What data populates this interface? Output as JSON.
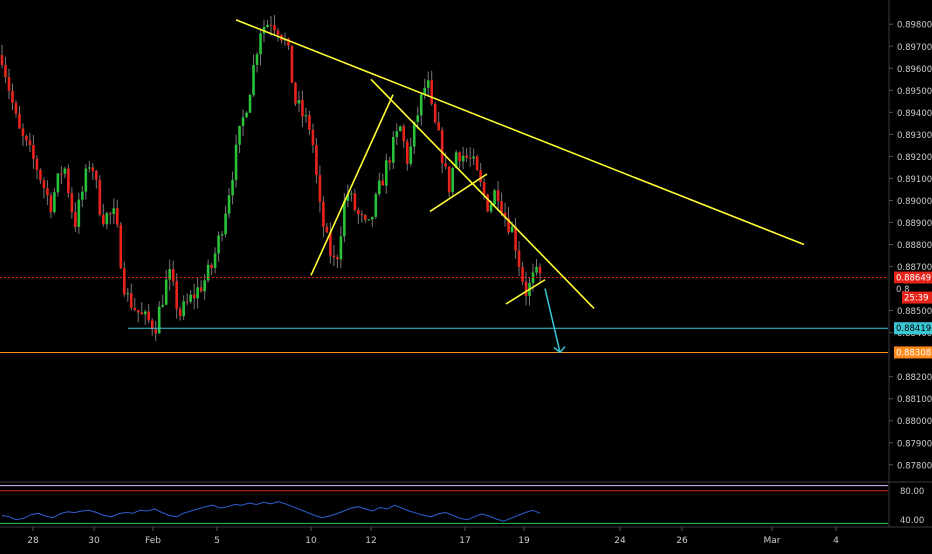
{
  "chart_data": [
    {
      "type": "candlestick",
      "instrument_hint": "forex pair (unlabeled)",
      "x_ticks": [
        "28",
        "30",
        "Feb",
        "5",
        "10",
        "12",
        "17",
        "19",
        "24",
        "26",
        "Mar",
        "4"
      ],
      "y_ticks": [
        "0.89800",
        "0.89700",
        "0.89600",
        "0.89500",
        "0.89400",
        "0.89300",
        "0.89200",
        "0.89100",
        "0.89000",
        "0.88900",
        "0.88800",
        "0.88700",
        "0.88500",
        "0.88400",
        "0.88200",
        "0.88100",
        "0.88000",
        "0.87900",
        "0.87800"
      ],
      "ylim": [
        0.8774,
        0.8991
      ],
      "price_path": [
        [
          0,
          0.8966
        ],
        [
          0.03,
          0.8932
        ],
        [
          0.065,
          0.8915
        ],
        [
          0.09,
          0.8898
        ],
        [
          0.115,
          0.8917
        ],
        [
          0.135,
          0.8889
        ],
        [
          0.165,
          0.892
        ],
        [
          0.185,
          0.8893
        ],
        [
          0.21,
          0.8893
        ],
        [
          0.23,
          0.8857
        ],
        [
          0.26,
          0.8847
        ],
        [
          0.285,
          0.8843
        ],
        [
          0.31,
          0.8867
        ],
        [
          0.33,
          0.8848
        ],
        [
          0.35,
          0.8855
        ],
        [
          0.375,
          0.8863
        ],
        [
          0.39,
          0.887
        ],
        [
          0.405,
          0.8884
        ],
        [
          0.42,
          0.8902
        ],
        [
          0.44,
          0.8928
        ],
        [
          0.46,
          0.895
        ],
        [
          0.48,
          0.8978
        ],
        [
          0.5,
          0.8982
        ],
        [
          0.515,
          0.8978
        ],
        [
          0.53,
          0.897
        ],
        [
          0.545,
          0.8945
        ],
        [
          0.56,
          0.8938
        ],
        [
          0.575,
          0.8932
        ],
        [
          0.59,
          0.8897
        ],
        [
          0.605,
          0.888
        ],
        [
          0.62,
          0.887
        ],
        [
          0.64,
          0.8905
        ],
        [
          0.66,
          0.8894
        ],
        [
          0.68,
          0.8886
        ],
        [
          0.7,
          0.8904
        ],
        [
          0.72,
          0.892
        ],
        [
          0.74,
          0.8933
        ],
        [
          0.755,
          0.8917
        ],
        [
          0.77,
          0.8937
        ],
        [
          0.79,
          0.8955
        ],
        [
          0.8,
          0.8938
        ],
        [
          0.815,
          0.8925
        ],
        [
          0.83,
          0.8905
        ],
        [
          0.845,
          0.8923
        ],
        [
          0.86,
          0.892
        ],
        [
          0.875,
          0.8917
        ],
        [
          0.89,
          0.8906
        ],
        [
          0.905,
          0.8897
        ],
        [
          0.92,
          0.8906
        ],
        [
          0.935,
          0.8893
        ],
        [
          0.95,
          0.8886
        ],
        [
          0.965,
          0.8867
        ],
        [
          0.975,
          0.8858
        ],
        [
          0.99,
          0.8866
        ],
        [
          1.0,
          0.8865
        ]
      ],
      "price_path_x_note": "x runs 0..1 from the first to the last visible candle",
      "candle_count": 155,
      "seed": 7,
      "colors": {
        "bull": "#27c23a",
        "bear": "#e8241a",
        "wick": "#777777"
      },
      "trendlines": [
        {
          "color": "#ffff33",
          "from": [
            "6 Feb",
            0.8982
          ],
          "to": [
            "29 Feb",
            0.888
          ]
        },
        {
          "color": "#ffff33",
          "from": [
            "10 Feb",
            0.8866
          ],
          "to": [
            "13 Feb",
            0.8948
          ]
        },
        {
          "color": "#ffff33",
          "from": [
            "12 Feb",
            0.8955
          ],
          "to": [
            "22 Feb",
            0.8851
          ]
        },
        {
          "color": "#ffff33",
          "from": [
            "15 Feb",
            0.8895
          ],
          "to": [
            "16 Feb",
            0.8912
          ]
        },
        {
          "color": "#ffff33",
          "from": [
            "18 Feb",
            0.8853
          ],
          "to": [
            "20 Feb",
            0.8864
          ]
        }
      ],
      "arrow": {
        "color": "#39c7d6",
        "from": [
          "20 Feb",
          0.886
        ],
        "to": [
          "21 Feb",
          0.8831
        ]
      },
      "horizontal_levels": [
        {
          "value": 0.8842,
          "color": "#39c7d6",
          "style": "solid",
          "from": "29 Jan",
          "label": "0.88419"
        },
        {
          "value": 0.8831,
          "color": "#ff8a1c",
          "style": "solid",
          "from": "start",
          "label": "0.88308"
        },
        {
          "value": 0.8865,
          "color": "#e8241a",
          "style": "dotted",
          "from": "start",
          "label": "0.88649"
        }
      ],
      "price_badges": [
        {
          "text": "0.88649",
          "bg": "#e8241a",
          "color": "#ffffff"
        },
        {
          "text": "0.8",
          "bg": "#000000",
          "color": "#cccccc"
        },
        {
          "text": "25:39",
          "bg": "#e8241a",
          "color": "#ffffff"
        },
        {
          "text": "0.88419",
          "bg": "#39c7d6",
          "color": "#000000"
        },
        {
          "text": "0.88308",
          "bg": "#ff8a1c",
          "color": "#ffffff"
        }
      ]
    },
    {
      "type": "line",
      "indicator_hint": "oscillator (unlabeled)",
      "y_ticks": [
        "80.00",
        "40.00"
      ],
      "ylim": [
        30,
        92
      ],
      "levels": [
        {
          "value": 80,
          "color": "#e8241a"
        },
        {
          "value": 87,
          "color": "#d9b8ff"
        },
        {
          "value": 35,
          "color": "#27c23a"
        }
      ],
      "series_color": "#2d5fd1",
      "series": [
        46,
        44,
        40,
        42,
        47,
        49,
        45,
        43,
        48,
        51,
        50,
        52,
        53,
        50,
        46,
        44,
        48,
        50,
        49,
        53,
        52,
        55,
        50,
        46,
        44,
        49,
        52,
        55,
        58,
        60,
        56,
        58,
        61,
        60,
        63,
        61,
        64,
        62,
        65,
        62,
        58,
        54,
        50,
        46,
        43,
        45,
        48,
        52,
        56,
        58,
        55,
        52,
        57,
        55,
        60,
        56,
        52,
        49,
        46,
        44,
        48,
        50,
        46,
        42,
        40,
        44,
        48,
        45,
        41,
        38,
        42,
        46,
        50,
        53,
        49
      ]
    }
  ]
}
